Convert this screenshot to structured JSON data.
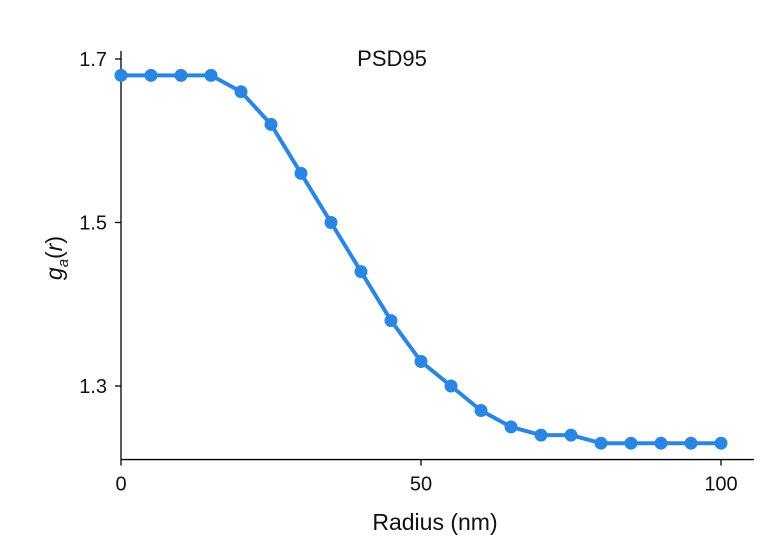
{
  "chart_data": {
    "type": "line",
    "title": "PSD95",
    "xlabel": "Radius (nm)",
    "ylabel": {
      "main": "g",
      "subscript": "a",
      "open": "(",
      "variable": "r",
      "close": ")"
    },
    "xlim": [
      0,
      105
    ],
    "ylim": [
      1.21,
      1.71
    ],
    "x_ticks": [
      0,
      50,
      100
    ],
    "x_tick_labels": [
      "0",
      "50",
      "100"
    ],
    "y_ticks": [
      1.3,
      1.5,
      1.7
    ],
    "y_tick_labels": [
      "1.3",
      "1.5",
      "1.7"
    ],
    "grid": false,
    "series": [
      {
        "name": "PSD95",
        "color": "#2a86e0",
        "marker": "circle",
        "x": [
          0,
          5,
          10,
          15,
          20,
          25,
          30,
          35,
          40,
          45,
          50,
          55,
          60,
          65,
          70,
          75,
          80,
          85,
          90,
          95,
          100
        ],
        "values": [
          1.68,
          1.68,
          1.68,
          1.68,
          1.66,
          1.62,
          1.56,
          1.5,
          1.44,
          1.38,
          1.33,
          1.3,
          1.27,
          1.25,
          1.24,
          1.24,
          1.23,
          1.23,
          1.23,
          1.23,
          1.23
        ]
      }
    ]
  }
}
